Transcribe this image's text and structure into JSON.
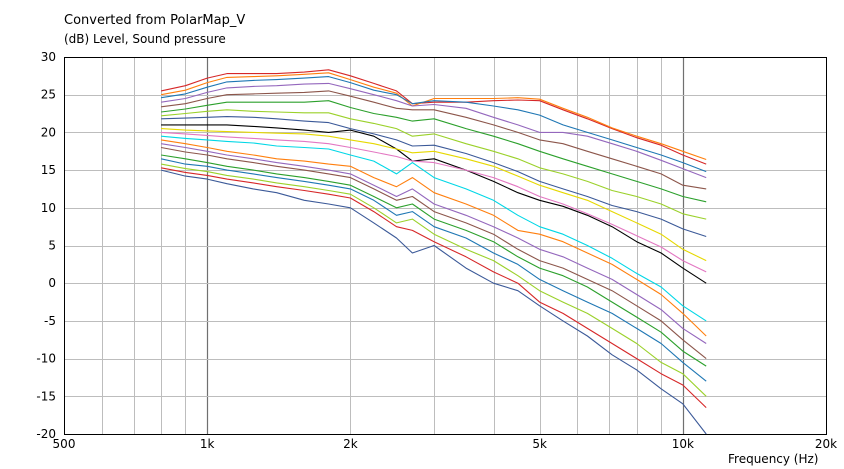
{
  "chart_data": {
    "type": "line",
    "title": "Converted from PolarMap_V",
    "ylabel": "(dB)  Level, Sound pressure",
    "xlabel": "Frequency  (Hz)",
    "x_scale": "log",
    "xlim": [
      500,
      20000
    ],
    "ylim": [
      -20,
      30
    ],
    "grid": true,
    "x_ticks": [
      {
        "value": 500,
        "label": "500"
      },
      {
        "value": 1000,
        "label": "1k"
      },
      {
        "value": 2000,
        "label": "2k"
      },
      {
        "value": 5000,
        "label": "5k"
      },
      {
        "value": 10000,
        "label": "10k"
      },
      {
        "value": 20000,
        "label": "20k"
      }
    ],
    "y_ticks": [
      30,
      25,
      20,
      15,
      10,
      5,
      0,
      -5,
      -10,
      -15,
      -20
    ],
    "frequencies": [
      800,
      900,
      1000,
      1100,
      1250,
      1400,
      1600,
      1800,
      2000,
      2240,
      2500,
      2700,
      3000,
      3500,
      4000,
      4500,
      5000,
      5600,
      6300,
      7100,
      8000,
      9000,
      10000,
      11200
    ],
    "series": [
      {
        "color": "#d62728",
        "values": [
          25.5,
          26.2,
          27.2,
          27.8,
          27.8,
          27.8,
          28.0,
          28.3,
          27.5,
          26.5,
          25.5,
          23.8,
          24.0,
          24.0,
          24.2,
          24.3,
          24.2,
          23.0,
          21.8,
          20.5,
          19.3,
          18.3,
          17.0,
          15.8
        ]
      },
      {
        "color": "#ff7f0e",
        "values": [
          25.0,
          25.6,
          26.6,
          27.3,
          27.4,
          27.5,
          27.7,
          27.9,
          27.0,
          26.0,
          25.2,
          23.5,
          24.5,
          24.5,
          24.5,
          24.6,
          24.4,
          23.2,
          22.0,
          20.6,
          19.5,
          18.5,
          17.5,
          16.4
        ]
      },
      {
        "color": "#1f77b4",
        "values": [
          24.6,
          25.1,
          26.0,
          26.7,
          26.9,
          27.0,
          27.2,
          27.4,
          26.6,
          25.6,
          25.0,
          23.8,
          24.2,
          24.0,
          23.5,
          23.0,
          22.3,
          21.0,
          20.0,
          19.0,
          18.0,
          17.0,
          16.0,
          14.8
        ]
      },
      {
        "color": "#9467bd",
        "values": [
          24.0,
          24.5,
          25.3,
          25.9,
          26.1,
          26.2,
          26.4,
          26.5,
          25.8,
          25.0,
          24.2,
          23.5,
          23.7,
          23.2,
          22.0,
          21.0,
          20.0,
          20.0,
          19.5,
          18.5,
          17.5,
          16.3,
          15.2,
          14.0
        ]
      },
      {
        "color": "#8c564b",
        "values": [
          23.4,
          23.8,
          24.5,
          25.0,
          25.1,
          25.2,
          25.3,
          25.5,
          24.8,
          24.0,
          23.2,
          23.0,
          23.0,
          22.0,
          21.0,
          20.0,
          19.0,
          18.5,
          17.5,
          16.5,
          15.5,
          14.5,
          13.0,
          12.5
        ]
      },
      {
        "color": "#2ca02c",
        "values": [
          22.7,
          23.1,
          23.6,
          24.0,
          24.0,
          24.0,
          24.0,
          24.2,
          23.3,
          22.5,
          22.0,
          21.5,
          21.8,
          20.5,
          19.5,
          18.5,
          17.5,
          16.5,
          15.5,
          14.5,
          13.5,
          12.5,
          11.5,
          10.8
        ]
      },
      {
        "color": "#9bd12a",
        "values": [
          22.2,
          22.5,
          22.8,
          23.0,
          22.8,
          22.7,
          22.6,
          22.6,
          21.8,
          21.2,
          20.5,
          19.5,
          19.8,
          18.5,
          17.5,
          16.5,
          15.3,
          14.5,
          13.5,
          12.3,
          11.5,
          10.5,
          9.2,
          8.5
        ]
      },
      {
        "color": "#3b5998",
        "values": [
          21.8,
          21.9,
          22.0,
          22.1,
          22.0,
          21.8,
          21.5,
          21.3,
          20.5,
          19.8,
          19.0,
          18.2,
          18.3,
          17.2,
          16.0,
          14.8,
          13.5,
          12.5,
          11.5,
          10.3,
          9.5,
          8.5,
          7.2,
          6.2
        ]
      },
      {
        "color": "#000000",
        "values": [
          21.0,
          21.0,
          21.0,
          21.0,
          20.8,
          20.6,
          20.3,
          20.0,
          20.3,
          19.5,
          17.8,
          16.2,
          16.5,
          15.0,
          13.5,
          12.0,
          11.0,
          10.2,
          9.0,
          7.5,
          5.5,
          4.0,
          2.0,
          0.0
        ]
      },
      {
        "color": "#e6d800",
        "values": [
          20.5,
          20.3,
          20.2,
          20.1,
          20.0,
          19.9,
          19.8,
          19.5,
          19.0,
          18.5,
          17.8,
          17.3,
          17.5,
          16.5,
          15.5,
          14.2,
          13.0,
          12.0,
          11.0,
          9.5,
          8.0,
          6.5,
          4.5,
          3.0
        ]
      },
      {
        "color": "#e377c2",
        "values": [
          20.0,
          19.8,
          19.6,
          19.4,
          19.2,
          19.0,
          18.8,
          18.5,
          18.0,
          17.4,
          16.8,
          16.2,
          16.0,
          15.0,
          14.0,
          12.8,
          11.5,
          10.5,
          9.2,
          7.8,
          6.3,
          4.8,
          3.0,
          1.5
        ]
      },
      {
        "color": "#00d7e6",
        "values": [
          19.5,
          19.2,
          19.0,
          18.8,
          18.6,
          18.2,
          18.0,
          17.8,
          17.0,
          16.2,
          14.5,
          16.0,
          14.0,
          12.5,
          11.0,
          9.0,
          7.5,
          6.5,
          5.0,
          3.3,
          1.3,
          -0.5,
          -3.0,
          -5.0
        ]
      },
      {
        "color": "#ff7f0e",
        "values": [
          19.0,
          18.5,
          18.0,
          17.5,
          17.0,
          16.5,
          16.2,
          15.8,
          15.5,
          14.0,
          12.8,
          14.0,
          12.0,
          10.5,
          9.0,
          7.0,
          6.5,
          5.5,
          4.0,
          2.5,
          0.5,
          -1.5,
          -4.0,
          -7.0
        ]
      },
      {
        "color": "#9467bd",
        "values": [
          18.5,
          18.0,
          17.5,
          17.0,
          16.5,
          16.0,
          15.5,
          15.0,
          14.5,
          13.0,
          11.5,
          12.5,
          10.5,
          9.0,
          7.5,
          6.0,
          4.5,
          3.5,
          2.0,
          0.5,
          -1.5,
          -3.5,
          -6.0,
          -8.0
        ]
      },
      {
        "color": "#8c564b",
        "values": [
          18.0,
          17.4,
          17.0,
          16.5,
          16.0,
          15.5,
          15.0,
          14.5,
          14.0,
          12.5,
          11.0,
          11.5,
          9.5,
          8.0,
          6.5,
          4.5,
          3.0,
          2.0,
          0.5,
          -1.0,
          -3.0,
          -5.0,
          -7.5,
          -10.0
        ]
      },
      {
        "color": "#2ca02c",
        "values": [
          17.0,
          16.5,
          16.0,
          15.5,
          15.0,
          14.5,
          14.0,
          13.5,
          13.0,
          11.5,
          10.0,
          10.5,
          8.5,
          7.0,
          5.5,
          3.5,
          2.0,
          1.0,
          -0.5,
          -2.5,
          -4.5,
          -6.5,
          -9.0,
          -11.0
        ]
      },
      {
        "color": "#1f77b4",
        "values": [
          16.5,
          15.8,
          15.5,
          15.0,
          14.5,
          14.0,
          13.5,
          13.0,
          12.5,
          11.0,
          9.0,
          9.5,
          7.5,
          6.0,
          4.0,
          2.5,
          0.5,
          -1.0,
          -2.5,
          -4.0,
          -6.0,
          -8.0,
          -10.5,
          -13.0
        ]
      },
      {
        "color": "#9bd12a",
        "values": [
          15.8,
          15.2,
          14.8,
          14.3,
          13.8,
          13.3,
          12.8,
          12.3,
          11.8,
          10.0,
          8.0,
          8.5,
          6.5,
          4.5,
          3.0,
          1.0,
          -1.0,
          -2.5,
          -4.0,
          -6.0,
          -8.0,
          -10.5,
          -12.0,
          -15.0
        ]
      },
      {
        "color": "#d62728",
        "values": [
          15.3,
          14.7,
          14.3,
          13.8,
          13.3,
          12.8,
          12.3,
          11.8,
          11.3,
          9.5,
          7.5,
          7.0,
          5.5,
          3.5,
          1.5,
          0.0,
          -2.5,
          -4.0,
          -6.0,
          -8.0,
          -10.0,
          -12.0,
          -13.5,
          -16.5
        ]
      },
      {
        "color": "#3b5998",
        "values": [
          15.0,
          14.2,
          13.8,
          13.2,
          12.5,
          12.0,
          11.0,
          10.5,
          10.0,
          8.0,
          6.0,
          4.0,
          5.0,
          2.0,
          0.0,
          -1.0,
          -3.0,
          -5.0,
          -7.0,
          -9.5,
          -11.5,
          -14.0,
          -16.0,
          -20.0
        ]
      }
    ]
  }
}
